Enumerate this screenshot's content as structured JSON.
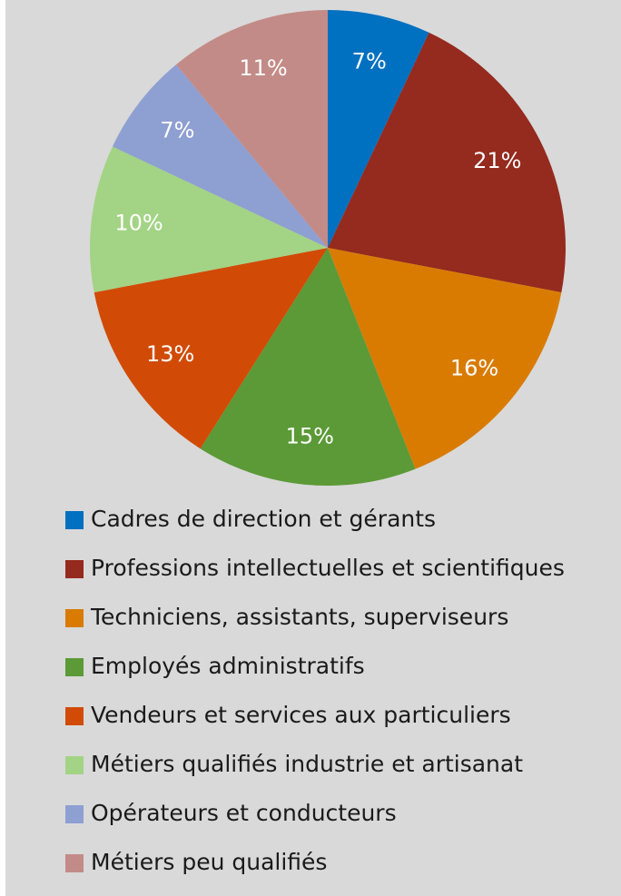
{
  "chart_data": {
    "type": "pie",
    "categories": [
      "Cadres de direction et gérants",
      "Professions intellectuelles et scientifiques",
      "Techniciens, assistants, superviseurs",
      "Employés administratifs",
      "Vendeurs et services aux particuliers",
      "Métiers qualifiés industrie et artisanat",
      "Opérateurs et conducteurs",
      "Métiers peu qualifiés"
    ],
    "values": [
      7,
      21,
      16,
      15,
      13,
      10,
      7,
      11
    ],
    "value_labels": [
      "7%",
      "21%",
      "16%",
      "15%",
      "13%",
      "10%",
      "7%",
      "11%"
    ],
    "colors": [
      "#0070c0",
      "#952a1e",
      "#d97b00",
      "#5b9a36",
      "#d14b06",
      "#a3d385",
      "#8e9fd2",
      "#c38b87"
    ],
    "legend": "bottom"
  }
}
